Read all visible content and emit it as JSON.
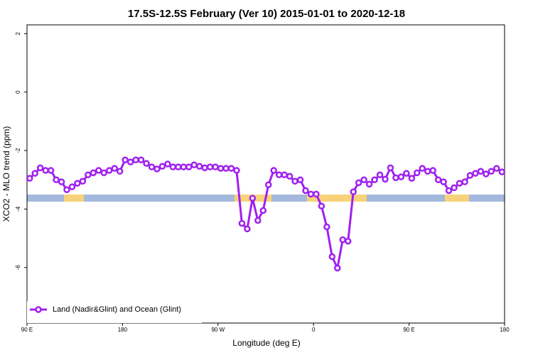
{
  "chart_data": {
    "type": "line",
    "title": "17.5S-12.5S February (Ver 10)   2015-01-01 to 2020-12-18",
    "x_label": "Longitude (deg E)",
    "y_label": "XCO2 - MLO trend (ppm)",
    "xlim": [
      90,
      540
    ],
    "ylim": [
      -7.9,
      2.3
    ],
    "xticks": [
      {
        "value": 90,
        "label": "90 E"
      },
      180,
      {
        "value": 270,
        "label": "90 W"
      },
      {
        "value": 360,
        "label": "0"
      },
      {
        "value": 450,
        "label": "90 E"
      },
      {
        "value": 540,
        "label": "180"
      }
    ],
    "yticks": [
      2,
      0,
      -2,
      -4,
      -6
    ],
    "legend": "bottom-left",
    "x": [
      92.5,
      97.5,
      102.5,
      107.5,
      112.5,
      117.5,
      122.5,
      127.5,
      132.5,
      137.5,
      142.5,
      147.5,
      152.5,
      157.5,
      162.5,
      167.5,
      172.5,
      177.5,
      182.5,
      187.5,
      192.5,
      197.5,
      202.5,
      207.5,
      212.5,
      217.5,
      222.5,
      227.5,
      232.5,
      237.5,
      242.5,
      247.5,
      252.5,
      257.5,
      262.5,
      267.5,
      272.5,
      277.5,
      282.5,
      287.5,
      292.5,
      297.5,
      302.5,
      307.5,
      312.5,
      317.5,
      322.5,
      327.5,
      332.5,
      337.5,
      342.5,
      347.5,
      352.5,
      357.5,
      362.5,
      367.5,
      372.5,
      377.5,
      382.5,
      387.5,
      392.5,
      397.5,
      402.5,
      407.5,
      412.5,
      417.5,
      422.5,
      427.5,
      432.5,
      437.5,
      442.5,
      447.5,
      452.5,
      457.5,
      462.5,
      467.5,
      472.5,
      477.5,
      482.5,
      487.5,
      492.5,
      497.5,
      502.5,
      507.5,
      512.5,
      517.5,
      522.5,
      527.5,
      532.5,
      537.5
    ],
    "series": [
      {
        "name": "Land (Nadir&Glint) and Ocean (Glint)",
        "color": "#a020f0",
        "values": [
          -2.95,
          -2.78,
          -2.59,
          -2.68,
          -2.68,
          -3.0,
          -3.07,
          -3.34,
          -3.24,
          -3.12,
          -3.05,
          -2.83,
          -2.76,
          -2.68,
          -2.76,
          -2.68,
          -2.61,
          -2.71,
          -2.32,
          -2.39,
          -2.32,
          -2.32,
          -2.44,
          -2.56,
          -2.63,
          -2.54,
          -2.46,
          -2.56,
          -2.56,
          -2.56,
          -2.56,
          -2.49,
          -2.54,
          -2.59,
          -2.56,
          -2.56,
          -2.61,
          -2.61,
          -2.61,
          -2.68,
          -4.49,
          -4.68,
          -3.63,
          -4.39,
          -4.05,
          -3.17,
          -2.68,
          -2.83,
          -2.83,
          -2.88,
          -3.05,
          -3.0,
          -3.37,
          -3.49,
          -3.49,
          -3.9,
          -4.61,
          -5.63,
          -6.02,
          -5.05,
          -5.1,
          -3.41,
          -3.1,
          -3.0,
          -3.15,
          -3.0,
          -2.83,
          -2.98,
          -2.59,
          -2.93,
          -2.9,
          -2.78,
          -2.95,
          -2.76,
          -2.61,
          -2.71,
          -2.68,
          -3.0,
          -3.07,
          -3.37,
          -3.27,
          -3.12,
          -3.07,
          -2.85,
          -2.78,
          -2.71,
          -2.8,
          -2.71,
          -2.61,
          -2.73
        ]
      }
    ]
  }
}
